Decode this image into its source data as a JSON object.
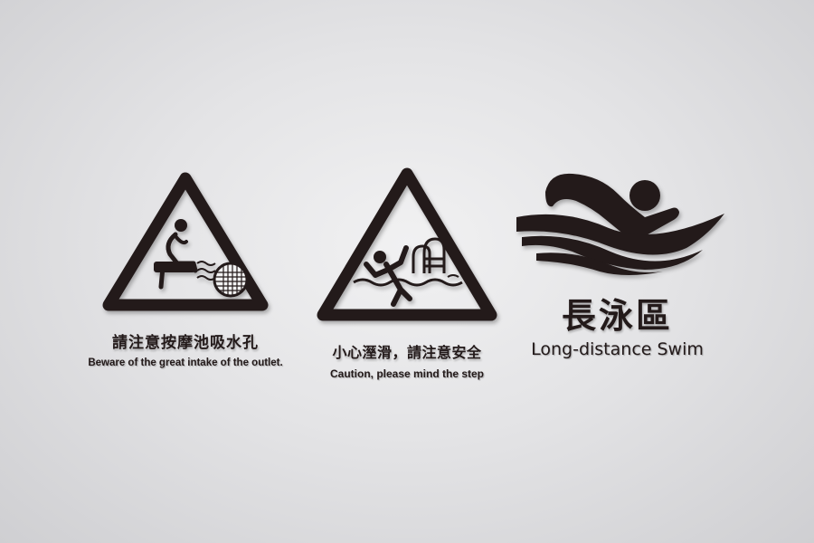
{
  "palette": {
    "ink": "#231a1a",
    "background": "#e4e4e6"
  },
  "signs": [
    {
      "icon": "drain-outlet-warning-icon",
      "title_zh": "請注意按摩池吸水孔",
      "caption_en": "Beware of the great intake of the outlet."
    },
    {
      "icon": "slippery-pool-warning-icon",
      "title_zh": "小心溼滑，請注意安全",
      "caption_en": "Caution, please mind the step"
    },
    {
      "icon": "swimmer-icon",
      "title_zh": "長泳區",
      "caption_en": "Long-distance Swim"
    }
  ]
}
